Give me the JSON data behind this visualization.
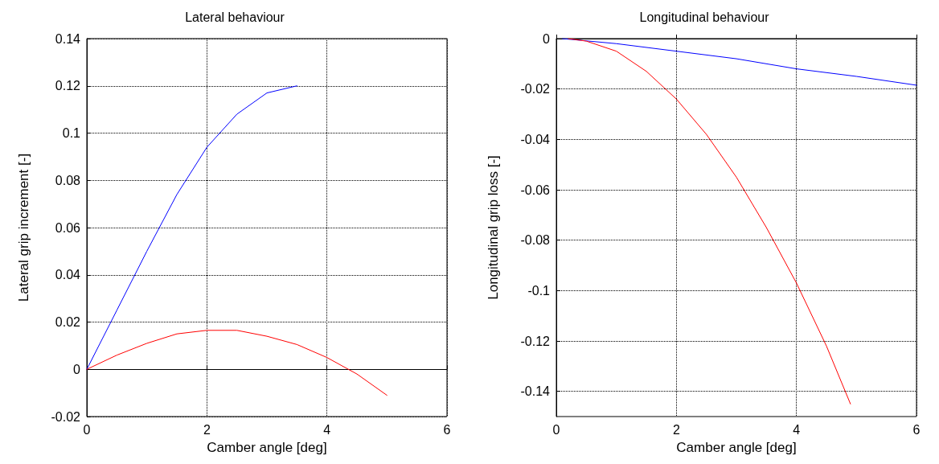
{
  "chart_data": [
    {
      "type": "line",
      "title": "Lateral behaviour",
      "xlabel": "Camber angle [deg]",
      "ylabel": "Lateral grip increment [-]",
      "xlim": [
        0,
        6
      ],
      "xticks": [
        0,
        2,
        4,
        6
      ],
      "ylim": [
        -0.02,
        0.14
      ],
      "yticks": [
        -0.02,
        0,
        0.02,
        0.04,
        0.06,
        0.08,
        0.1,
        0.12,
        0.14
      ],
      "grid": true,
      "line_style": "solid",
      "marker": "none",
      "series": [
        {
          "color": "#0000ff",
          "x": [
            0,
            0.5,
            1,
            1.5,
            2,
            2.5,
            3,
            3.5
          ],
          "values": [
            0,
            0.025,
            0.05,
            0.074,
            0.094,
            0.108,
            0.117,
            0.12
          ]
        },
        {
          "color": "#ff0000",
          "x": [
            0,
            0.5,
            1,
            1.5,
            2,
            2.5,
            3,
            3.5,
            4,
            4.5,
            5
          ],
          "values": [
            0,
            0.006,
            0.011,
            0.015,
            0.0165,
            0.0165,
            0.014,
            0.0105,
            0.005,
            -0.002,
            -0.011
          ]
        }
      ]
    },
    {
      "type": "line",
      "title": "Longitudinal behaviour",
      "xlabel": "Camber angle [deg]",
      "ylabel": "Longitudinal grip loss [-]",
      "xlim": [
        0,
        6
      ],
      "xticks": [
        0,
        2,
        4,
        6
      ],
      "ylim": [
        -0.15,
        0
      ],
      "yticks": [
        -0.14,
        -0.12,
        -0.1,
        -0.08,
        -0.06,
        -0.04,
        -0.02,
        0
      ],
      "grid": true,
      "line_style": "solid",
      "marker": "none",
      "series": [
        {
          "color": "#0000ff",
          "x": [
            0.1,
            1,
            2,
            3,
            4,
            5,
            6
          ],
          "values": [
            0,
            -0.002,
            -0.005,
            -0.008,
            -0.012,
            -0.015,
            -0.0185
          ]
        },
        {
          "color": "#ff0000",
          "x": [
            0.2,
            0.5,
            1,
            1.5,
            2,
            2.5,
            3,
            3.5,
            4,
            4.5,
            4.9
          ],
          "values": [
            0,
            -0.001,
            -0.005,
            -0.013,
            -0.024,
            -0.038,
            -0.055,
            -0.075,
            -0.097,
            -0.122,
            -0.145
          ]
        }
      ]
    }
  ]
}
